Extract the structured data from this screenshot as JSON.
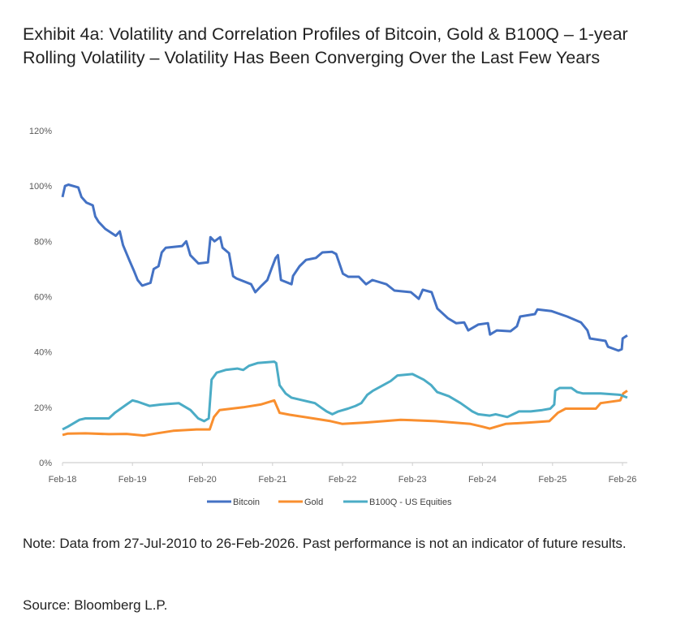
{
  "title": "Exhibit 4a: Volatility and Correlation Profiles of Bitcoin, Gold & B100Q – 1-year Rolling Volatility – Volatility Has Been Converging Over the Last Few Years",
  "note": "Note: Data from 27-Jul-2010 to 26-Feb-2026. Past performance is not an indicator of future results.",
  "source": "Source: Bloomberg L.P.",
  "chart_data": {
    "type": "line",
    "title": "",
    "xlabel": "",
    "ylabel": "",
    "ylim": [
      0,
      120
    ],
    "xlim": [
      "2018-02-01",
      "2026-02-26"
    ],
    "grid": false,
    "legend_position": "bottom",
    "y_ticks": [
      "0%",
      "20%",
      "40%",
      "60%",
      "80%",
      "100%",
      "120%"
    ],
    "y_tick_values": [
      0,
      20,
      40,
      60,
      80,
      100,
      120
    ],
    "x_ticks": [
      "Feb-18",
      "Feb-19",
      "Feb-20",
      "Feb-21",
      "Feb-22",
      "Feb-23",
      "Feb-24",
      "Feb-25",
      "Feb-26"
    ],
    "x_tick_dates": [
      "2018-02-01",
      "2019-02-01",
      "2020-02-01",
      "2021-02-01",
      "2022-02-01",
      "2023-02-01",
      "2024-02-01",
      "2025-02-01",
      "2026-02-01"
    ],
    "series": [
      {
        "name": "Bitcoin",
        "color": "#4472C4",
        "points": [
          [
            "2018-02-01",
            96
          ],
          [
            "2018-02-14",
            100
          ],
          [
            "2018-03-04",
            100.5
          ],
          [
            "2018-04-24",
            99.5
          ],
          [
            "2018-05-11",
            96
          ],
          [
            "2018-06-06",
            94
          ],
          [
            "2018-07-09",
            93
          ],
          [
            "2018-07-22",
            89
          ],
          [
            "2018-08-09",
            87
          ],
          [
            "2018-09-12",
            84.5
          ],
          [
            "2018-11-06",
            82
          ],
          [
            "2018-11-27",
            83.6
          ],
          [
            "2018-12-14",
            78.6
          ],
          [
            "2019-01-17",
            73
          ],
          [
            "2019-02-08",
            69.5
          ],
          [
            "2019-02-28",
            66
          ],
          [
            "2019-03-24",
            64
          ],
          [
            "2019-05-06",
            65
          ],
          [
            "2019-05-23",
            70
          ],
          [
            "2019-06-17",
            71
          ],
          [
            "2019-07-04",
            76
          ],
          [
            "2019-07-25",
            77.7
          ],
          [
            "2019-10-18",
            78.3
          ],
          [
            "2019-11-09",
            80
          ],
          [
            "2019-11-30",
            75
          ],
          [
            "2020-01-11",
            72
          ],
          [
            "2020-03-01",
            72.4
          ],
          [
            "2020-03-14",
            81.5
          ],
          [
            "2020-04-04",
            80
          ],
          [
            "2020-05-04",
            81.5
          ],
          [
            "2020-05-16",
            77.7
          ],
          [
            "2020-06-19",
            75.7
          ],
          [
            "2020-07-10",
            67.4
          ],
          [
            "2020-07-27",
            66.6
          ],
          [
            "2020-10-12",
            64.5
          ],
          [
            "2020-11-03",
            61.6
          ],
          [
            "2020-12-06",
            64
          ],
          [
            "2021-01-05",
            66
          ],
          [
            "2021-01-26",
            70
          ],
          [
            "2021-02-17",
            74
          ],
          [
            "2021-03-01",
            75
          ],
          [
            "2021-03-17",
            66
          ],
          [
            "2021-05-11",
            64.5
          ],
          [
            "2021-05-19",
            67.5
          ],
          [
            "2021-06-22",
            71
          ],
          [
            "2021-07-26",
            73.3
          ],
          [
            "2021-09-15",
            74
          ],
          [
            "2021-10-19",
            76
          ],
          [
            "2021-12-09",
            76.2
          ],
          [
            "2021-12-30",
            75.4
          ],
          [
            "2022-02-03",
            68.3
          ],
          [
            "2022-03-03",
            67.2
          ],
          [
            "2022-04-27",
            67.2
          ],
          [
            "2022-06-04",
            64.5
          ],
          [
            "2022-07-07",
            66
          ],
          [
            "2022-09-18",
            64.5
          ],
          [
            "2022-10-30",
            62.2
          ],
          [
            "2023-01-24",
            61.6
          ],
          [
            "2023-03-06",
            59.2
          ],
          [
            "2023-03-27",
            62.5
          ],
          [
            "2023-05-12",
            61.6
          ],
          [
            "2023-06-11",
            55.7
          ],
          [
            "2023-08-05",
            52.2
          ],
          [
            "2023-09-17",
            50.4
          ],
          [
            "2023-10-29",
            50.7
          ],
          [
            "2023-11-19",
            47.8
          ],
          [
            "2024-01-10",
            49.9
          ],
          [
            "2024-03-01",
            50.4
          ],
          [
            "2024-03-12",
            46.3
          ],
          [
            "2024-04-16",
            47.8
          ],
          [
            "2024-06-27",
            47.5
          ],
          [
            "2024-07-30",
            49.3
          ],
          [
            "2024-08-16",
            52.8
          ],
          [
            "2024-11-01",
            53.7
          ],
          [
            "2024-11-14",
            55.4
          ],
          [
            "2025-01-25",
            54.8
          ],
          [
            "2025-04-18",
            52.8
          ],
          [
            "2025-06-29",
            50.7
          ],
          [
            "2025-08-02",
            47.8
          ],
          [
            "2025-08-15",
            44.9
          ],
          [
            "2025-11-04",
            44
          ],
          [
            "2025-11-17",
            41.9
          ],
          [
            "2026-01-11",
            40.5
          ],
          [
            "2026-01-28",
            41
          ],
          [
            "2026-02-02",
            44.9
          ],
          [
            "2026-02-26",
            46
          ]
        ]
      },
      {
        "name": "Gold",
        "color": "#F98F2F",
        "points": [
          [
            "2018-02-01",
            10
          ],
          [
            "2018-03-01",
            10.5
          ],
          [
            "2018-06-01",
            10.6
          ],
          [
            "2018-10-01",
            10.3
          ],
          [
            "2019-01-01",
            10.4
          ],
          [
            "2019-04-01",
            9.8
          ],
          [
            "2019-06-01",
            10.5
          ],
          [
            "2019-09-01",
            11.5
          ],
          [
            "2020-01-01",
            12
          ],
          [
            "2020-03-10",
            12
          ],
          [
            "2020-04-01",
            16.5
          ],
          [
            "2020-05-01",
            19
          ],
          [
            "2020-09-01",
            20
          ],
          [
            "2020-12-01",
            21
          ],
          [
            "2021-02-10",
            22.5
          ],
          [
            "2021-03-10",
            18
          ],
          [
            "2021-05-01",
            17.3
          ],
          [
            "2021-09-01",
            16
          ],
          [
            "2021-12-01",
            15
          ],
          [
            "2022-02-01",
            14
          ],
          [
            "2022-06-01",
            14.5
          ],
          [
            "2022-12-01",
            15.5
          ],
          [
            "2023-06-01",
            15
          ],
          [
            "2023-12-01",
            14
          ],
          [
            "2024-02-01",
            13
          ],
          [
            "2024-03-10",
            12.3
          ],
          [
            "2024-06-01",
            14
          ],
          [
            "2024-10-01",
            14.5
          ],
          [
            "2025-01-15",
            15
          ],
          [
            "2025-03-01",
            18
          ],
          [
            "2025-04-10",
            19.5
          ],
          [
            "2025-09-15",
            19.5
          ],
          [
            "2025-10-10",
            21.5
          ],
          [
            "2026-01-20",
            22.5
          ],
          [
            "2026-02-05",
            25
          ],
          [
            "2026-02-26",
            26
          ]
        ]
      },
      {
        "name": "B100Q - US Equities",
        "color": "#4BACC6",
        "points": [
          [
            "2018-02-01",
            12
          ],
          [
            "2018-03-01",
            13
          ],
          [
            "2018-05-01",
            15.5
          ],
          [
            "2018-06-01",
            16
          ],
          [
            "2018-10-01",
            16
          ],
          [
            "2018-11-01",
            18
          ],
          [
            "2019-01-01",
            21
          ],
          [
            "2019-02-01",
            22.5
          ],
          [
            "2019-03-01",
            22
          ],
          [
            "2019-05-01",
            20.5
          ],
          [
            "2019-07-01",
            21
          ],
          [
            "2019-10-01",
            21.5
          ],
          [
            "2019-12-01",
            19
          ],
          [
            "2020-01-10",
            16
          ],
          [
            "2020-02-10",
            15
          ],
          [
            "2020-03-05",
            16
          ],
          [
            "2020-03-20",
            30
          ],
          [
            "2020-04-15",
            32.5
          ],
          [
            "2020-06-01",
            33.5
          ],
          [
            "2020-08-01",
            34
          ],
          [
            "2020-09-01",
            33.5
          ],
          [
            "2020-10-01",
            35
          ],
          [
            "2020-11-15",
            36
          ],
          [
            "2021-02-10",
            36.5
          ],
          [
            "2021-02-20",
            36
          ],
          [
            "2021-03-10",
            28
          ],
          [
            "2021-04-10",
            25
          ],
          [
            "2021-05-10",
            23.5
          ],
          [
            "2021-07-10",
            22.5
          ],
          [
            "2021-09-10",
            21.5
          ],
          [
            "2021-10-10",
            20
          ],
          [
            "2021-11-10",
            18.5
          ],
          [
            "2021-12-10",
            17.5
          ],
          [
            "2022-01-10",
            18.5
          ],
          [
            "2022-03-01",
            19.5
          ],
          [
            "2022-04-10",
            20.5
          ],
          [
            "2022-05-10",
            21.5
          ],
          [
            "2022-06-10",
            24.5
          ],
          [
            "2022-07-10",
            26
          ],
          [
            "2022-09-01",
            28
          ],
          [
            "2022-10-10",
            29.5
          ],
          [
            "2022-11-15",
            31.5
          ],
          [
            "2023-02-01",
            32
          ],
          [
            "2023-04-01",
            30
          ],
          [
            "2023-05-10",
            28
          ],
          [
            "2023-06-10",
            25.5
          ],
          [
            "2023-08-10",
            24
          ],
          [
            "2023-10-10",
            21.5
          ],
          [
            "2023-11-10",
            20
          ],
          [
            "2023-12-10",
            18.5
          ],
          [
            "2024-01-10",
            17.5
          ],
          [
            "2024-03-10",
            17
          ],
          [
            "2024-04-10",
            17.5
          ],
          [
            "2024-06-10",
            16.5
          ],
          [
            "2024-07-10",
            17.5
          ],
          [
            "2024-08-10",
            18.5
          ],
          [
            "2024-10-10",
            18.5
          ],
          [
            "2024-12-10",
            19
          ],
          [
            "2025-01-20",
            19.5
          ],
          [
            "2025-02-10",
            21
          ],
          [
            "2025-02-15",
            26
          ],
          [
            "2025-03-10",
            27
          ],
          [
            "2025-05-10",
            27
          ],
          [
            "2025-06-10",
            25.5
          ],
          [
            "2025-07-10",
            25
          ],
          [
            "2025-10-10",
            25
          ],
          [
            "2026-01-20",
            24.5
          ],
          [
            "2026-02-26",
            23.5
          ]
        ]
      }
    ]
  }
}
